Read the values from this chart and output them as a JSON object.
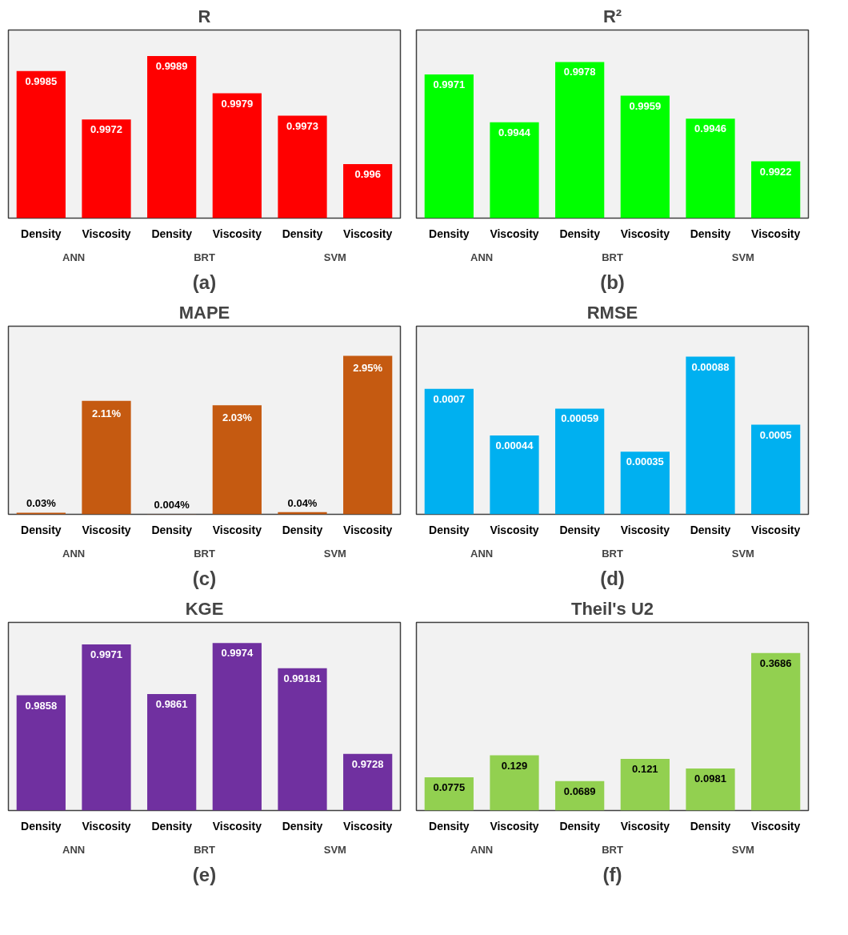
{
  "chart_data": [
    {
      "type": "bar",
      "title": "R",
      "categories": [
        "Density",
        "Viscosity",
        "Density",
        "Viscosity",
        "Density",
        "Viscosity"
      ],
      "values": [
        0.9985,
        0.9972,
        0.9989,
        0.9979,
        0.9973,
        0.996
      ],
      "color": "#ff0000",
      "ylim": [
        0.99455,
        0.9996
      ],
      "data_labels": true,
      "tick_labels": "x",
      "grid": false,
      "annotations": [
        "ANN",
        "BRT",
        "SVM",
        "(a)"
      ]
    },
    {
      "type": "bar",
      "title": "R²",
      "categories": [
        "Density",
        "Viscosity",
        "Density",
        "Viscosity",
        "Density",
        "Viscosity"
      ],
      "values": [
        0.9971,
        0.9944,
        0.9978,
        0.9959,
        0.9946,
        0.9922
      ],
      "color": "#00ff00",
      "ylim": [
        0.989,
        0.9996
      ],
      "data_labels": true,
      "tick_labels": "x",
      "grid": false,
      "annotations": [
        "ANN",
        "BRT",
        "SVM",
        "(b)"
      ]
    },
    {
      "type": "bar",
      "title": "MAPE",
      "categories": [
        "Density",
        "Viscosity",
        "Density",
        "Viscosity",
        "Density",
        "Viscosity"
      ],
      "values": [
        0.03,
        2.11,
        0.004,
        2.03,
        0.04,
        2.95
      ],
      "value_labels": [
        "0.03%",
        "2.11%",
        "0.004%",
        "2.03%",
        "0.04%",
        "2.95%"
      ],
      "color": "#c55a11",
      "ylim": [
        0,
        3.5
      ],
      "tick_labels": "x",
      "grid": false,
      "annotations": [
        "ANN",
        "BRT",
        "SVM",
        "(c)"
      ]
    },
    {
      "type": "bar",
      "title": "RMSE",
      "categories": [
        "Density",
        "Viscosity",
        "Density",
        "Viscosity",
        "Density",
        "Viscosity"
      ],
      "values": [
        0.0007,
        0.00044,
        0.00059,
        0.00035,
        0.00088,
        0.0005
      ],
      "color": "#00b0f0",
      "ylim": [
        0,
        0.00105
      ],
      "data_labels": true,
      "tick_labels": "x",
      "grid": false,
      "annotations": [
        "ANN",
        "BRT",
        "SVM",
        "(d)"
      ]
    },
    {
      "type": "bar",
      "title": "KGE",
      "categories": [
        "Density",
        "Viscosity",
        "Density",
        "Viscosity",
        "Density",
        "Viscosity"
      ],
      "values": [
        0.9858,
        0.9971,
        0.9861,
        0.9974,
        0.99181,
        0.9728
      ],
      "color": "#7030a0",
      "ylim": [
        0.9602,
        1.002
      ],
      "data_labels": true,
      "tick_labels": "x",
      "grid": false,
      "annotations": [
        "ANN",
        "BRT",
        "SVM",
        "(e)"
      ]
    },
    {
      "type": "bar",
      "title": "Theil's U2",
      "categories": [
        "Density",
        "Viscosity",
        "Density",
        "Viscosity",
        "Density",
        "Viscosity"
      ],
      "values": [
        0.0775,
        0.129,
        0.0689,
        0.121,
        0.0981,
        0.3686
      ],
      "color": "#92d050",
      "ylim": [
        0,
        0.44
      ],
      "data_labels": true,
      "tick_labels": "x",
      "grid": false,
      "annotations": [
        "ANN",
        "BRT",
        "SVM",
        "(f)"
      ]
    }
  ]
}
